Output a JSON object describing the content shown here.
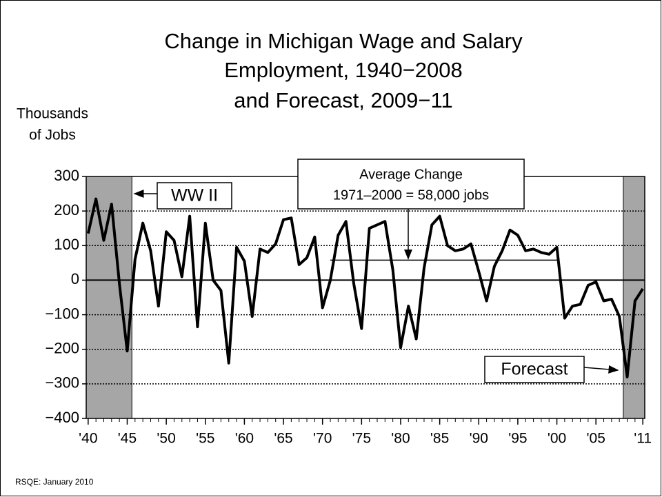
{
  "chart_data": {
    "type": "line",
    "title": [
      "Change in Michigan Wage and Salary",
      "Employment, 1940−2008",
      "and Forecast, 2009−11"
    ],
    "y_label": [
      "Thousands",
      "of Jobs"
    ],
    "x": [
      1940,
      1941,
      1942,
      1943,
      1944,
      1945,
      1946,
      1947,
      1948,
      1949,
      1950,
      1951,
      1952,
      1953,
      1954,
      1955,
      1956,
      1957,
      1958,
      1959,
      1960,
      1961,
      1962,
      1963,
      1964,
      1965,
      1966,
      1967,
      1968,
      1969,
      1970,
      1971,
      1972,
      1973,
      1974,
      1975,
      1976,
      1977,
      1978,
      1979,
      1980,
      1981,
      1982,
      1983,
      1984,
      1985,
      1986,
      1987,
      1988,
      1989,
      1990,
      1991,
      1992,
      1993,
      1994,
      1995,
      1996,
      1997,
      1998,
      1999,
      2000,
      2001,
      2002,
      2003,
      2004,
      2005,
      2006,
      2007,
      2008,
      2009,
      2010,
      2011
    ],
    "series": [
      {
        "name": "Change in employment",
        "color": "#000000",
        "values": [
          135,
          235,
          115,
          220,
          -10,
          -205,
          60,
          165,
          85,
          -75,
          140,
          115,
          10,
          185,
          -135,
          165,
          0,
          -30,
          -240,
          95,
          55,
          -105,
          90,
          80,
          105,
          175,
          180,
          45,
          65,
          125,
          -80,
          0,
          130,
          170,
          -10,
          -140,
          150,
          160,
          170,
          30,
          -195,
          -75,
          -170,
          35,
          160,
          185,
          100,
          85,
          90,
          105,
          25,
          -60,
          40,
          85,
          145,
          130,
          85,
          90,
          80,
          75,
          95,
          -110,
          -75,
          -70,
          -15,
          -5,
          -60,
          -55,
          -105,
          -280,
          -60,
          -25
        ]
      }
    ],
    "xlim": [
      1939.75,
      2011.25
    ],
    "ylim": [
      -400,
      300
    ],
    "yticks": [
      {
        "value": -400,
        "label": "−400"
      },
      {
        "value": -300,
        "label": "−300"
      },
      {
        "value": -200,
        "label": "−200"
      },
      {
        "value": -100,
        "label": "−100"
      },
      0,
      100,
      200,
      300
    ],
    "xticks": [
      {
        "value": 1940,
        "label": "'40"
      },
      {
        "value": 1945,
        "label": "'45"
      },
      {
        "value": 1950,
        "label": "'50"
      },
      {
        "value": 1955,
        "label": "'55"
      },
      {
        "value": 1960,
        "label": "'60"
      },
      {
        "value": 1965,
        "label": "'65"
      },
      {
        "value": 1970,
        "label": "'70"
      },
      {
        "value": 1975,
        "label": "'75"
      },
      {
        "value": 1980,
        "label": "'80"
      },
      {
        "value": 1985,
        "label": "'85"
      },
      {
        "value": 1990,
        "label": "'90"
      },
      {
        "value": 1995,
        "label": "'95"
      },
      {
        "value": 2000,
        "label": "'00"
      },
      {
        "value": 2005,
        "label": "'05"
      },
      {
        "value": 2011,
        "label": "'11"
      }
    ],
    "grid": true,
    "shaded_ranges": [
      [
        1939.75,
        1945.6
      ],
      [
        2008.5,
        2011.25
      ]
    ],
    "average_line": {
      "value": 58,
      "x": [
        1971,
        2000
      ]
    },
    "annotations": {
      "ww2": "WW II",
      "average": [
        "Average Change",
        "1971–2000 = 58,000 jobs"
      ],
      "forecast": "Forecast"
    },
    "source": "RSQE: January 2010"
  }
}
